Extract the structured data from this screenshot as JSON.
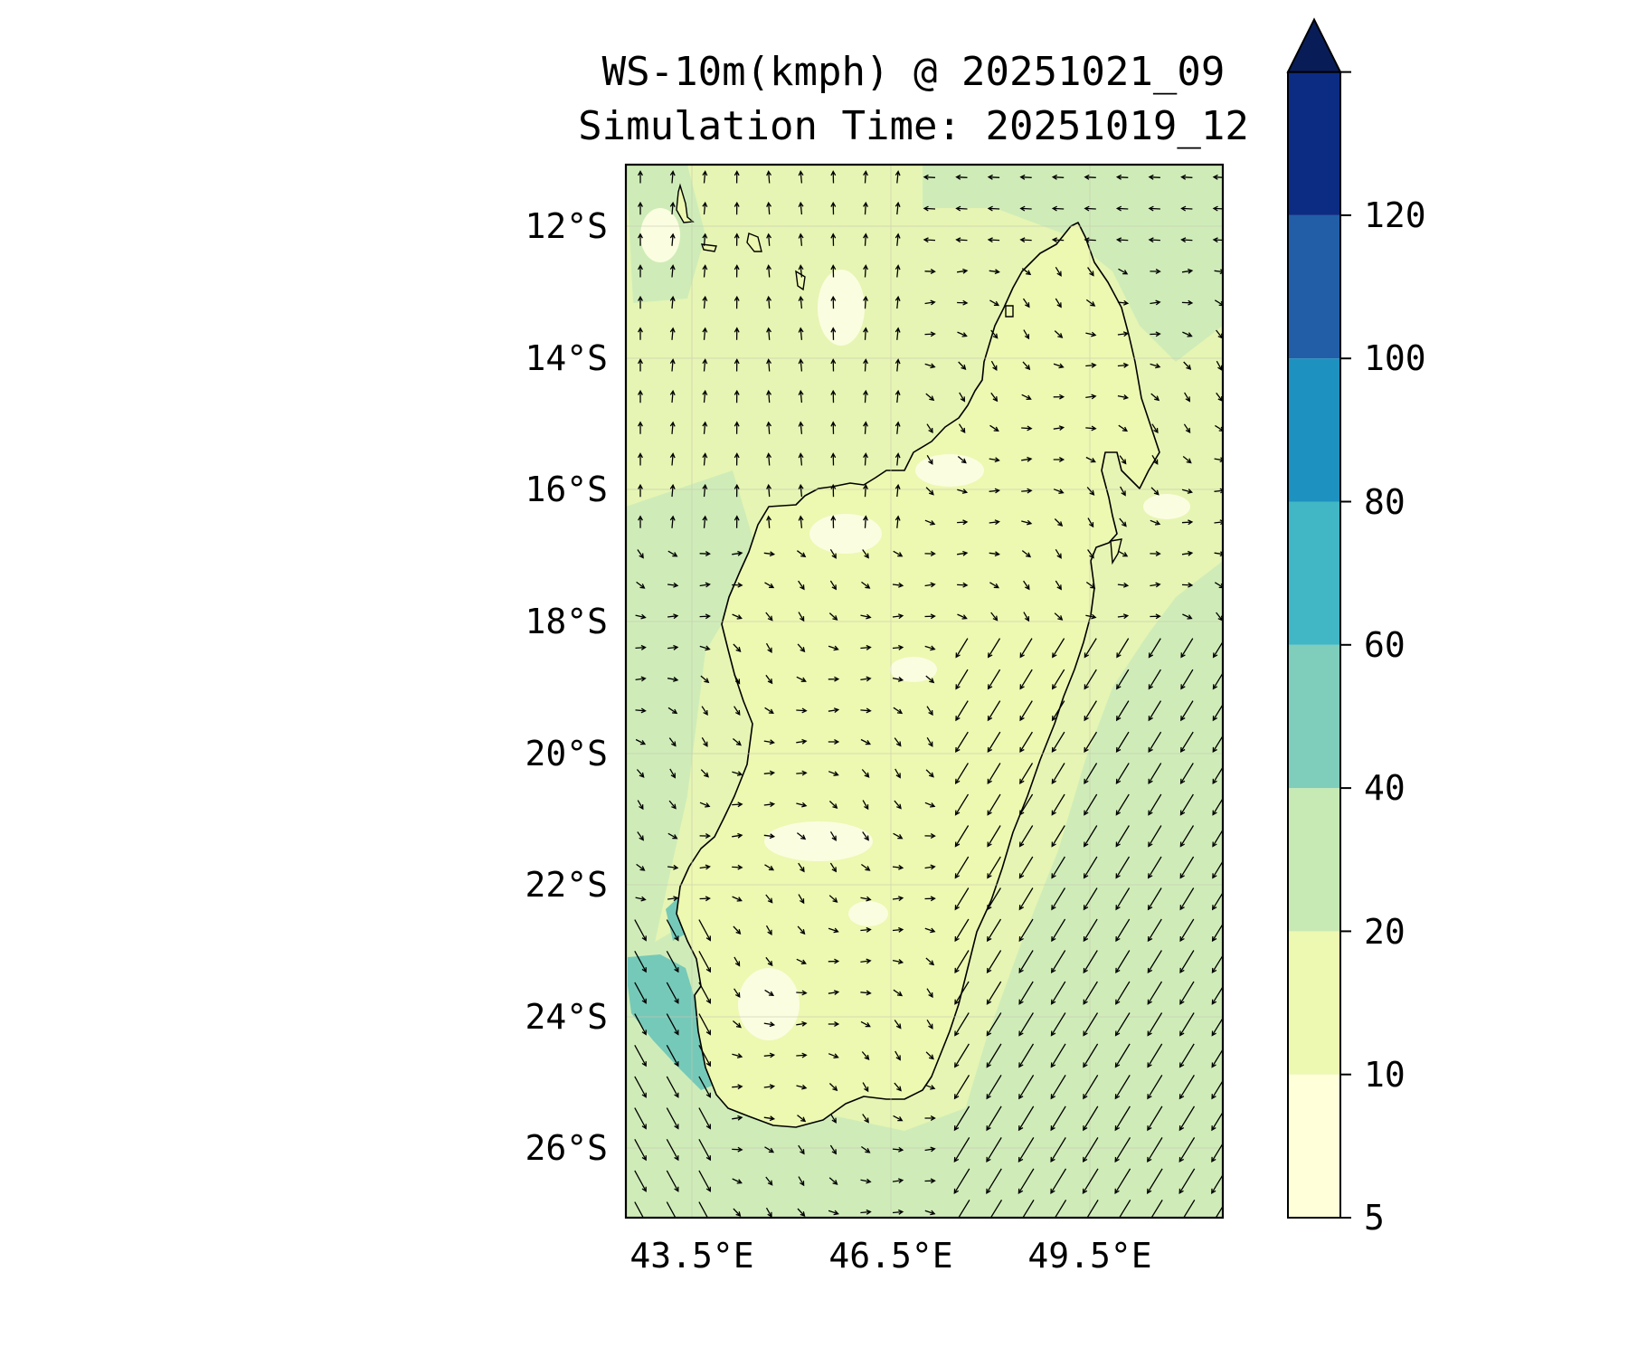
{
  "title": {
    "line1": "WS-10m(kmph) @ 20251021_09",
    "line2": "Simulation Time: 20251019_12"
  },
  "map": {
    "lon_range": [
      42.5,
      51.5
    ],
    "lat_range": [
      -27,
      -11
    ],
    "lat_labels": [
      "12°S",
      "14°S",
      "16°S",
      "18°S",
      "20°S",
      "22°S",
      "24°S",
      "26°S"
    ],
    "lon_labels": [
      "43.5°E",
      "46.5°E",
      "49.5°E"
    ],
    "land_color": "#edf8b1",
    "coastline_color": "#000000"
  },
  "colorbar": {
    "levels": [
      "5",
      "10",
      "20",
      "40",
      "60",
      "80",
      "100",
      "120"
    ],
    "colors": [
      "#ffffd9",
      "#edf8b1",
      "#c7e9b4",
      "#7fcdbb",
      "#41b6c4",
      "#1d91c0",
      "#225ea8",
      "#0c2c84"
    ],
    "extend": "max",
    "extend_color": "#081d58"
  },
  "wind": {
    "units": "kmph",
    "west_coast_max_level": "40-60",
    "east_ocean_level": "20-40",
    "land_level": "10-20"
  }
}
